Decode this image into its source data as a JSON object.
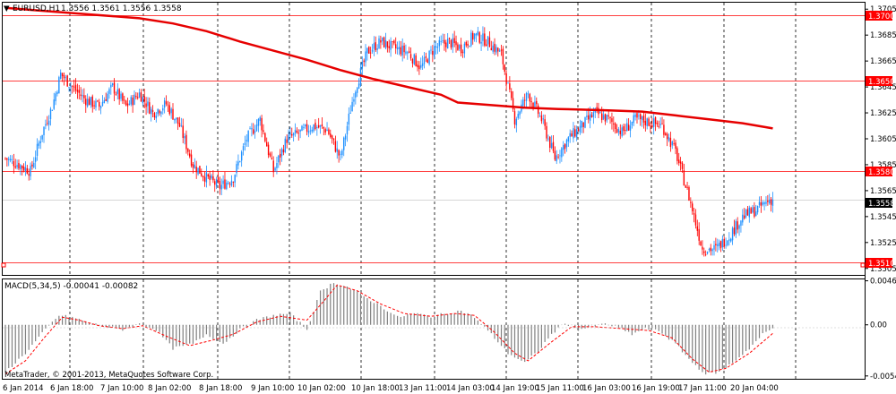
{
  "header": {
    "symbol_label": "EURUSD,H1",
    "ohlc_label": "1.3556 1.3561 1.3556 1.3558",
    "macd_label": "MACD(5,34,5) -0.00041 -0.00082"
  },
  "footer": {
    "copyright": "MetaTrader, © 2001-2013, MetaQuotes Software Corp."
  },
  "colors": {
    "bull_candle": "#1e90ff",
    "bear_candle": "#ff0000",
    "moving_average": "#e60000",
    "horizontal_lines": "#ff0000",
    "macd_histogram": "#808080",
    "macd_signal": "#ff0000",
    "grid_vertical": "#000000",
    "current_price_box": "#000000"
  },
  "chart_data": [
    {
      "type": "candlestick",
      "title": "EURUSD,H1",
      "ylim": [
        1.35,
        1.371
      ],
      "y_ticks": [
        "1.3705",
        "1.3685",
        "1.3665",
        "1.3645",
        "1.3625",
        "1.3605",
        "1.3585",
        "1.3565",
        "1.3545",
        "1.3525",
        "1.3505"
      ],
      "x_ticks": [
        "6 Jan 2014",
        "6 Jan 18:00",
        "7 Jan 10:00",
        "8 Jan 02:00",
        "8 Jan 18:00",
        "9 Jan 10:00",
        "10 Jan 02:00",
        "10 Jan 18:00",
        "13 Jan 11:00",
        "14 Jan 03:00",
        "14 Jan 19:00",
        "15 Jan 11:00",
        "16 Jan 03:00",
        "16 Jan 19:00",
        "17 Jan 11:00",
        "20 Jan 04:00"
      ],
      "horizontal_lines": [
        {
          "value": 1.37,
          "label": "1.3700"
        },
        {
          "value": 1.365,
          "label": "1.3650"
        },
        {
          "value": 1.358,
          "label": "1.3580"
        },
        {
          "value": 1.351,
          "label": "1.3510"
        }
      ],
      "current_price": {
        "value": 1.3558,
        "label": "1.3558"
      },
      "moving_average_path": [
        [
          0,
          1.3706
        ],
        [
          20,
          1.3704
        ],
        [
          40,
          1.3702
        ],
        [
          60,
          1.37
        ],
        [
          80,
          1.3698
        ],
        [
          100,
          1.3694
        ],
        [
          120,
          1.3688
        ],
        [
          140,
          1.368
        ],
        [
          160,
          1.3673
        ],
        [
          180,
          1.3666
        ],
        [
          200,
          1.3658
        ],
        [
          220,
          1.3651
        ],
        [
          240,
          1.3645
        ],
        [
          260,
          1.3639
        ],
        [
          270,
          1.3633
        ],
        [
          290,
          1.3631
        ],
        [
          310,
          1.3629
        ],
        [
          330,
          1.3628
        ],
        [
          360,
          1.3627
        ],
        [
          380,
          1.3626
        ],
        [
          400,
          1.3623
        ],
        [
          420,
          1.362
        ],
        [
          440,
          1.3617
        ],
        [
          458,
          1.3613
        ]
      ],
      "candle_anchors": [
        [
          0,
          1.359
        ],
        [
          8,
          1.3585
        ],
        [
          15,
          1.358
        ],
        [
          22,
          1.361
        ],
        [
          28,
          1.363
        ],
        [
          33,
          1.3655
        ],
        [
          40,
          1.3645
        ],
        [
          48,
          1.3635
        ],
        [
          56,
          1.363
        ],
        [
          64,
          1.3645
        ],
        [
          72,
          1.363
        ],
        [
          80,
          1.364
        ],
        [
          88,
          1.3625
        ],
        [
          96,
          1.3632
        ],
        [
          104,
          1.3615
        ],
        [
          112,
          1.3585
        ],
        [
          120,
          1.3575
        ],
        [
          128,
          1.3568
        ],
        [
          136,
          1.3575
        ],
        [
          144,
          1.3605
        ],
        [
          152,
          1.362
        ],
        [
          160,
          1.358
        ],
        [
          168,
          1.3605
        ],
        [
          176,
          1.361
        ],
        [
          184,
          1.3615
        ],
        [
          192,
          1.3612
        ],
        [
          200,
          1.359
        ],
        [
          208,
          1.364
        ],
        [
          216,
          1.3672
        ],
        [
          224,
          1.368
        ],
        [
          232,
          1.3675
        ],
        [
          240,
          1.3672
        ],
        [
          248,
          1.366
        ],
        [
          256,
          1.3675
        ],
        [
          264,
          1.368
        ],
        [
          272,
          1.3675
        ],
        [
          280,
          1.3685
        ],
        [
          288,
          1.368
        ],
        [
          296,
          1.367
        ],
        [
          304,
          1.362
        ],
        [
          312,
          1.364
        ],
        [
          320,
          1.362
        ],
        [
          328,
          1.359
        ],
        [
          336,
          1.3605
        ],
        [
          344,
          1.3615
        ],
        [
          352,
          1.3625
        ],
        [
          360,
          1.362
        ],
        [
          368,
          1.361
        ],
        [
          376,
          1.362
        ],
        [
          384,
          1.3618
        ],
        [
          392,
          1.3615
        ],
        [
          400,
          1.3595
        ],
        [
          408,
          1.356
        ],
        [
          416,
          1.352
        ],
        [
          424,
          1.352
        ],
        [
          432,
          1.353
        ],
        [
          440,
          1.3545
        ],
        [
          448,
          1.355
        ],
        [
          456,
          1.3558
        ]
      ]
    },
    {
      "type": "bar",
      "title": "MACD(5,34,5) -0.00041 -0.00082",
      "ylim": [
        -0.0057,
        0.0048
      ],
      "y_ticks": [
        "0.00465",
        "0.00",
        "-0.0054"
      ],
      "histogram_anchors": [
        [
          0,
          -0.005
        ],
        [
          12,
          -0.003
        ],
        [
          24,
          -0.0005
        ],
        [
          32,
          0.001
        ],
        [
          40,
          0.0008
        ],
        [
          50,
          0.0002
        ],
        [
          60,
          -0.0002
        ],
        [
          70,
          -0.0005
        ],
        [
          80,
          0.0001
        ],
        [
          90,
          -0.0005
        ],
        [
          100,
          -0.0025
        ],
        [
          112,
          -0.002
        ],
        [
          120,
          -0.001
        ],
        [
          130,
          -0.002
        ],
        [
          140,
          -0.0005
        ],
        [
          150,
          0.0005
        ],
        [
          160,
          0.001
        ],
        [
          170,
          0.0012
        ],
        [
          180,
          -0.0005
        ],
        [
          188,
          0.0035
        ],
        [
          196,
          0.0045
        ],
        [
          204,
          0.004
        ],
        [
          214,
          0.003
        ],
        [
          224,
          0.002
        ],
        [
          234,
          0.0008
        ],
        [
          244,
          0.0012
        ],
        [
          254,
          0.0009
        ],
        [
          264,
          0.0012
        ],
        [
          272,
          0.0015
        ],
        [
          280,
          0.0008
        ],
        [
          290,
          -0.001
        ],
        [
          300,
          -0.003
        ],
        [
          310,
          -0.004
        ],
        [
          318,
          -0.0028
        ],
        [
          326,
          -0.001
        ],
        [
          334,
          0.0002
        ],
        [
          342,
          -0.0005
        ],
        [
          350,
          -0.0002
        ],
        [
          358,
          0.0001
        ],
        [
          366,
          -0.0003
        ],
        [
          374,
          -0.001
        ],
        [
          382,
          -0.0004
        ],
        [
          390,
          -0.0006
        ],
        [
          400,
          -0.002
        ],
        [
          410,
          -0.004
        ],
        [
          418,
          -0.0052
        ],
        [
          426,
          -0.005
        ],
        [
          434,
          -0.004
        ],
        [
          444,
          -0.0025
        ],
        [
          452,
          -0.001
        ],
        [
          458,
          -0.0004
        ]
      ],
      "signal_anchors": [
        [
          0,
          -0.0052
        ],
        [
          12,
          -0.0038
        ],
        [
          24,
          -0.0012
        ],
        [
          34,
          0.0008
        ],
        [
          44,
          0.0005
        ],
        [
          56,
          -0.0001
        ],
        [
          70,
          -0.0004
        ],
        [
          82,
          -0.0001
        ],
        [
          96,
          -0.0012
        ],
        [
          110,
          -0.0022
        ],
        [
          124,
          -0.0016
        ],
        [
          136,
          -0.001
        ],
        [
          150,
          0.0003
        ],
        [
          164,
          0.0009
        ],
        [
          180,
          0.0005
        ],
        [
          190,
          0.0025
        ],
        [
          198,
          0.0042
        ],
        [
          210,
          0.0036
        ],
        [
          224,
          0.0022
        ],
        [
          238,
          0.0012
        ],
        [
          254,
          0.0009
        ],
        [
          268,
          0.0012
        ],
        [
          280,
          0.001
        ],
        [
          292,
          -0.0008
        ],
        [
          304,
          -0.003
        ],
        [
          312,
          -0.0038
        ],
        [
          326,
          -0.0018
        ],
        [
          338,
          -0.0002
        ],
        [
          352,
          -0.0002
        ],
        [
          368,
          -0.0004
        ],
        [
          384,
          -0.0006
        ],
        [
          398,
          -0.0014
        ],
        [
          410,
          -0.0036
        ],
        [
          420,
          -0.005
        ],
        [
          430,
          -0.0046
        ],
        [
          444,
          -0.003
        ],
        [
          458,
          -0.0009
        ]
      ]
    }
  ]
}
